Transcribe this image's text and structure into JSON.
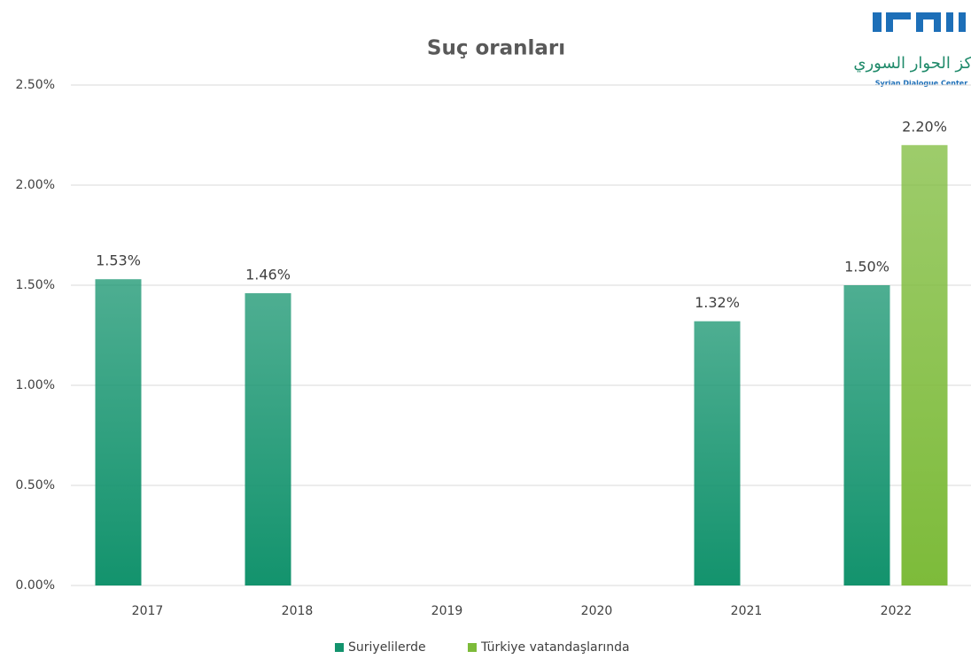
{
  "chart_data": {
    "type": "bar",
    "title": "Suç oranları",
    "categories": [
      "2017",
      "2018",
      "2019",
      "2020",
      "2021",
      "2022"
    ],
    "series": [
      {
        "name": "Suriyelilerde",
        "color": "#13936d",
        "values": [
          1.53,
          1.46,
          null,
          null,
          1.32,
          1.5
        ],
        "value_labels": [
          "1.53%",
          "1.46%",
          null,
          null,
          "1.32%",
          "1.50%"
        ]
      },
      {
        "name": "Türkiye vatandaşlarında",
        "color": "#7dbb3a",
        "values": [
          null,
          null,
          null,
          null,
          null,
          2.2
        ],
        "value_labels": [
          null,
          null,
          null,
          null,
          null,
          "2.20%"
        ]
      }
    ],
    "ylim": [
      0,
      2.5
    ],
    "yticks": [
      {
        "value": 0,
        "label": "0.00%"
      },
      {
        "value": 0.5,
        "label": "0.50%"
      },
      {
        "value": 1,
        "label": "1.00%"
      },
      {
        "value": 1.5,
        "label": "1.50%"
      },
      {
        "value": 2,
        "label": "2.00%"
      },
      {
        "value": 2.5,
        "label": "2.50%"
      }
    ],
    "grid": true,
    "legend": "bottom",
    "logo": {
      "arabic": "مركز الحوار السوري",
      "english": "Syrian Dialogue Center"
    }
  }
}
